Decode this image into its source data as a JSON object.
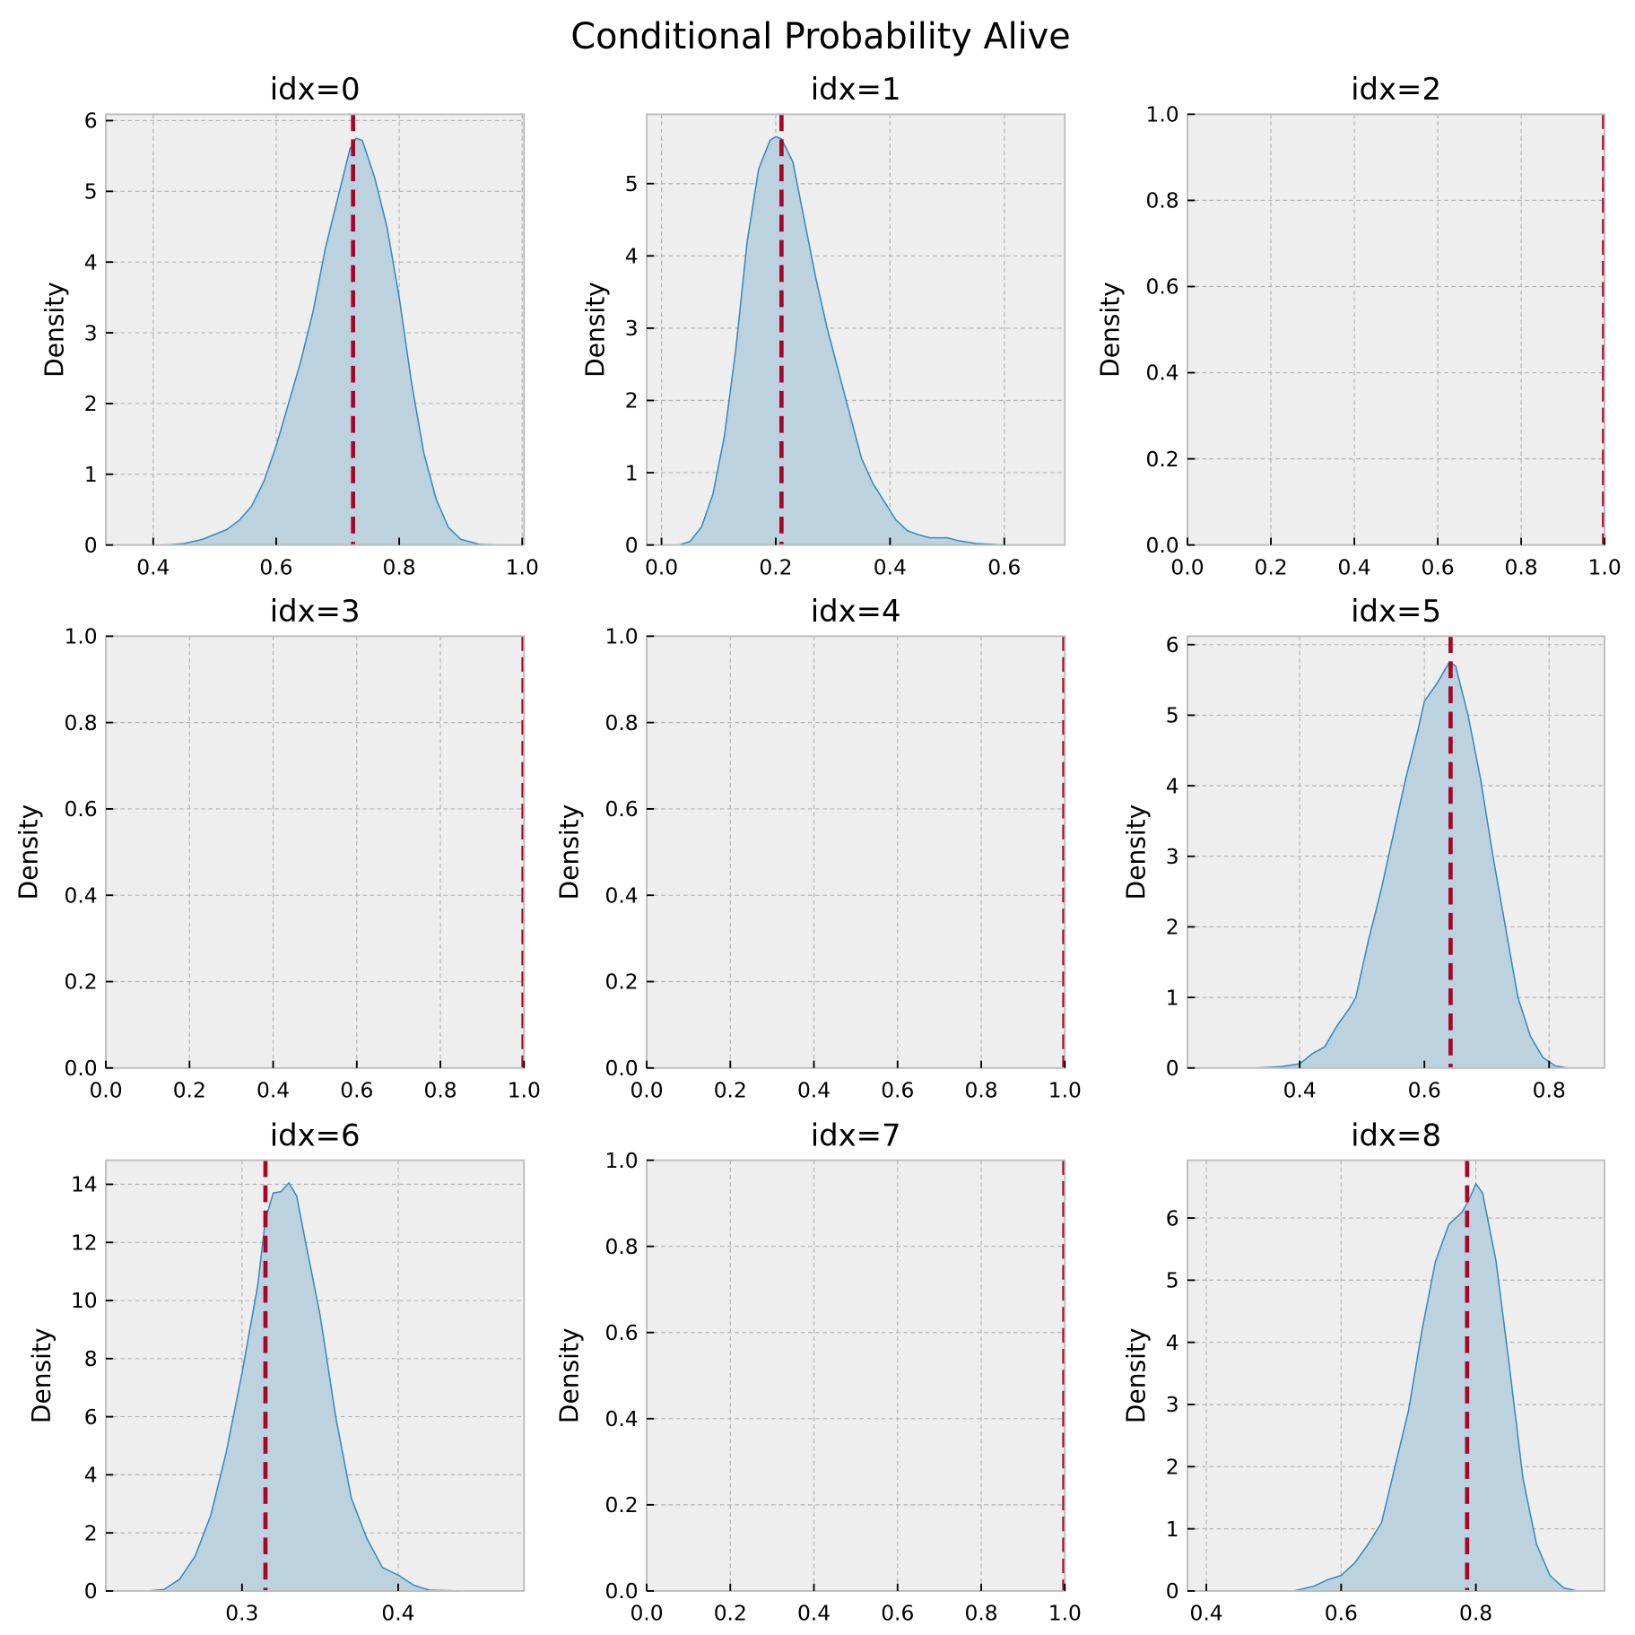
{
  "chart_data": {
    "title": "Conditional Probability Alive",
    "type": "area",
    "ref_line_color": "#a60628",
    "kde_color": "#348abd",
    "panels": [
      {
        "title": "idx=0",
        "ylabel": "Density",
        "xlim": [
          0.323,
          1.003
        ],
        "ylim": [
          0,
          6.09
        ],
        "xticks": [
          0.4,
          0.6,
          0.8,
          1.0
        ],
        "xticklabels": [
          "0.4",
          "0.6",
          "0.8",
          "1.0"
        ],
        "yticks": [
          0,
          1,
          2,
          3,
          4,
          5,
          6
        ],
        "yticklabels": [
          "0",
          "1",
          "2",
          "3",
          "4",
          "5",
          "6"
        ],
        "ref_line": 0.725,
        "kde": [
          [
            0.42,
            0
          ],
          [
            0.45,
            0.02
          ],
          [
            0.48,
            0.08
          ],
          [
            0.5,
            0.15
          ],
          [
            0.52,
            0.22
          ],
          [
            0.54,
            0.35
          ],
          [
            0.56,
            0.55
          ],
          [
            0.58,
            0.9
          ],
          [
            0.6,
            1.4
          ],
          [
            0.62,
            2.0
          ],
          [
            0.64,
            2.6
          ],
          [
            0.66,
            3.3
          ],
          [
            0.68,
            4.2
          ],
          [
            0.7,
            4.9
          ],
          [
            0.72,
            5.6
          ],
          [
            0.73,
            5.75
          ],
          [
            0.74,
            5.72
          ],
          [
            0.76,
            5.2
          ],
          [
            0.78,
            4.5
          ],
          [
            0.8,
            3.5
          ],
          [
            0.82,
            2.3
          ],
          [
            0.84,
            1.3
          ],
          [
            0.86,
            0.65
          ],
          [
            0.88,
            0.25
          ],
          [
            0.9,
            0.08
          ],
          [
            0.93,
            0.01
          ],
          [
            0.96,
            0
          ]
        ]
      },
      {
        "title": "idx=1",
        "ylabel": "Density",
        "xlim": [
          -0.026,
          0.706
        ],
        "ylim": [
          0,
          5.96
        ],
        "xticks": [
          0.0,
          0.2,
          0.4,
          0.6
        ],
        "xticklabels": [
          "0.0",
          "0.2",
          "0.4",
          "0.6"
        ],
        "yticks": [
          0,
          1,
          2,
          3,
          4,
          5
        ],
        "yticklabels": [
          "0",
          "1",
          "2",
          "3",
          "4",
          "5"
        ],
        "ref_line": 0.21,
        "kde": [
          [
            0.03,
            0
          ],
          [
            0.05,
            0.05
          ],
          [
            0.07,
            0.25
          ],
          [
            0.09,
            0.7
          ],
          [
            0.11,
            1.5
          ],
          [
            0.13,
            2.7
          ],
          [
            0.15,
            4.2
          ],
          [
            0.17,
            5.2
          ],
          [
            0.19,
            5.6
          ],
          [
            0.2,
            5.65
          ],
          [
            0.21,
            5.62
          ],
          [
            0.23,
            5.3
          ],
          [
            0.25,
            4.5
          ],
          [
            0.27,
            3.7
          ],
          [
            0.29,
            3.0
          ],
          [
            0.31,
            2.4
          ],
          [
            0.33,
            1.8
          ],
          [
            0.35,
            1.2
          ],
          [
            0.37,
            0.85
          ],
          [
            0.39,
            0.6
          ],
          [
            0.41,
            0.35
          ],
          [
            0.43,
            0.2
          ],
          [
            0.45,
            0.14
          ],
          [
            0.47,
            0.1
          ],
          [
            0.5,
            0.1
          ],
          [
            0.52,
            0.06
          ],
          [
            0.55,
            0.02
          ],
          [
            0.6,
            0
          ]
        ]
      },
      {
        "title": "idx=2",
        "ylabel": "Density",
        "xlim": [
          0,
          1
        ],
        "ylim": [
          0,
          1
        ],
        "xticks": [
          0,
          0.2,
          0.4,
          0.6,
          0.8,
          1.0
        ],
        "xticklabels": [
          "0.0",
          "0.2",
          "0.4",
          "0.6",
          "0.8",
          "1.0"
        ],
        "yticks": [
          0,
          0.2,
          0.4,
          0.6,
          0.8,
          1.0
        ],
        "yticklabels": [
          "0.0",
          "0.2",
          "0.4",
          "0.6",
          "0.8",
          "1.0"
        ],
        "ref_line": 1.0,
        "kde": []
      },
      {
        "title": "idx=3",
        "ylabel": "Density",
        "xlim": [
          0,
          1
        ],
        "ylim": [
          0,
          1
        ],
        "xticks": [
          0,
          0.2,
          0.4,
          0.6,
          0.8,
          1.0
        ],
        "xticklabels": [
          "0.0",
          "0.2",
          "0.4",
          "0.6",
          "0.8",
          "1.0"
        ],
        "yticks": [
          0,
          0.2,
          0.4,
          0.6,
          0.8,
          1.0
        ],
        "yticklabels": [
          "0.0",
          "0.2",
          "0.4",
          "0.6",
          "0.8",
          "1.0"
        ],
        "ref_line": 1.0,
        "kde": []
      },
      {
        "title": "idx=4",
        "ylabel": "Density",
        "xlim": [
          0,
          1
        ],
        "ylim": [
          0,
          1
        ],
        "xticks": [
          0,
          0.2,
          0.4,
          0.6,
          0.8,
          1.0
        ],
        "xticklabels": [
          "0.0",
          "0.2",
          "0.4",
          "0.6",
          "0.8",
          "1.0"
        ],
        "yticks": [
          0,
          0.2,
          0.4,
          0.6,
          0.8,
          1.0
        ],
        "yticklabels": [
          "0.0",
          "0.2",
          "0.4",
          "0.6",
          "0.8",
          "1.0"
        ],
        "ref_line": 1.0,
        "kde": []
      },
      {
        "title": "idx=5",
        "ylabel": "Density",
        "xlim": [
          0.22,
          0.889
        ],
        "ylim": [
          0,
          6.12
        ],
        "xticks": [
          0.4,
          0.6,
          0.8
        ],
        "xticklabels": [
          "0.4",
          "0.6",
          "0.8"
        ],
        "yticks": [
          0,
          1,
          2,
          3,
          4,
          5,
          6
        ],
        "yticklabels": [
          "0",
          "1",
          "2",
          "3",
          "4",
          "5",
          "6"
        ],
        "ref_line": 0.642,
        "kde": [
          [
            0.33,
            0
          ],
          [
            0.37,
            0.02
          ],
          [
            0.4,
            0.06
          ],
          [
            0.42,
            0.2
          ],
          [
            0.44,
            0.3
          ],
          [
            0.46,
            0.6
          ],
          [
            0.48,
            0.85
          ],
          [
            0.49,
            1.0
          ],
          [
            0.51,
            1.8
          ],
          [
            0.53,
            2.5
          ],
          [
            0.55,
            3.3
          ],
          [
            0.57,
            4.1
          ],
          [
            0.59,
            4.8
          ],
          [
            0.6,
            5.2
          ],
          [
            0.62,
            5.45
          ],
          [
            0.64,
            5.75
          ],
          [
            0.65,
            5.7
          ],
          [
            0.67,
            5.0
          ],
          [
            0.69,
            4.1
          ],
          [
            0.71,
            3.0
          ],
          [
            0.73,
            2.0
          ],
          [
            0.75,
            1.0
          ],
          [
            0.77,
            0.45
          ],
          [
            0.79,
            0.15
          ],
          [
            0.81,
            0.03
          ],
          [
            0.83,
            0
          ]
        ]
      },
      {
        "title": "idx=6",
        "ylabel": "Density",
        "xlim": [
          0.2128,
          0.4806
        ],
        "ylim": [
          0,
          14.83
        ],
        "xticks": [
          0.3,
          0.4
        ],
        "xticklabels": [
          "0.3",
          "0.4"
        ],
        "yticks": [
          0,
          2,
          4,
          6,
          8,
          10,
          12,
          14
        ],
        "yticklabels": [
          "0",
          "2",
          "4",
          "6",
          "8",
          "10",
          "12",
          "14"
        ],
        "ref_line": 0.315,
        "kde": [
          [
            0.24,
            0
          ],
          [
            0.25,
            0.05
          ],
          [
            0.26,
            0.4
          ],
          [
            0.27,
            1.2
          ],
          [
            0.28,
            2.6
          ],
          [
            0.29,
            4.8
          ],
          [
            0.3,
            7.5
          ],
          [
            0.31,
            10.5
          ],
          [
            0.315,
            12.8
          ],
          [
            0.32,
            13.7
          ],
          [
            0.325,
            13.75
          ],
          [
            0.33,
            14.05
          ],
          [
            0.335,
            13.6
          ],
          [
            0.34,
            12.2
          ],
          [
            0.35,
            9.5
          ],
          [
            0.36,
            6.0
          ],
          [
            0.37,
            3.2
          ],
          [
            0.38,
            1.8
          ],
          [
            0.39,
            0.8
          ],
          [
            0.4,
            0.55
          ],
          [
            0.41,
            0.2
          ],
          [
            0.42,
            0.03
          ],
          [
            0.44,
            0
          ]
        ]
      },
      {
        "title": "idx=7",
        "ylabel": "Density",
        "xlim": [
          0,
          1
        ],
        "ylim": [
          0,
          1
        ],
        "xticks": [
          0,
          0.2,
          0.4,
          0.6,
          0.8,
          1.0
        ],
        "xticklabels": [
          "0.0",
          "0.2",
          "0.4",
          "0.6",
          "0.8",
          "1.0"
        ],
        "yticks": [
          0,
          0.2,
          0.4,
          0.6,
          0.8,
          1.0
        ],
        "yticklabels": [
          "0.0",
          "0.2",
          "0.4",
          "0.6",
          "0.8",
          "1.0"
        ],
        "ref_line": 1.0,
        "kde": []
      },
      {
        "title": "idx=8",
        "ylabel": "Density",
        "xlim": [
          0.372,
          0.991
        ],
        "ylim": [
          0,
          6.93
        ],
        "xticks": [
          0.4,
          0.6,
          0.8
        ],
        "xticklabels": [
          "0.4",
          "0.6",
          "0.8"
        ],
        "yticks": [
          0,
          1,
          2,
          3,
          4,
          5,
          6
        ],
        "yticklabels": [
          "0",
          "1",
          "2",
          "3",
          "4",
          "5",
          "6"
        ],
        "ref_line": 0.787,
        "kde": [
          [
            0.53,
            0
          ],
          [
            0.56,
            0.08
          ],
          [
            0.58,
            0.18
          ],
          [
            0.6,
            0.25
          ],
          [
            0.62,
            0.45
          ],
          [
            0.64,
            0.75
          ],
          [
            0.66,
            1.1
          ],
          [
            0.68,
            2.0
          ],
          [
            0.7,
            2.9
          ],
          [
            0.72,
            4.2
          ],
          [
            0.74,
            5.3
          ],
          [
            0.76,
            5.9
          ],
          [
            0.78,
            6.1
          ],
          [
            0.79,
            6.3
          ],
          [
            0.8,
            6.55
          ],
          [
            0.81,
            6.4
          ],
          [
            0.83,
            5.3
          ],
          [
            0.85,
            3.6
          ],
          [
            0.87,
            1.8
          ],
          [
            0.89,
            0.75
          ],
          [
            0.91,
            0.25
          ],
          [
            0.93,
            0.05
          ],
          [
            0.95,
            0
          ]
        ]
      }
    ]
  }
}
